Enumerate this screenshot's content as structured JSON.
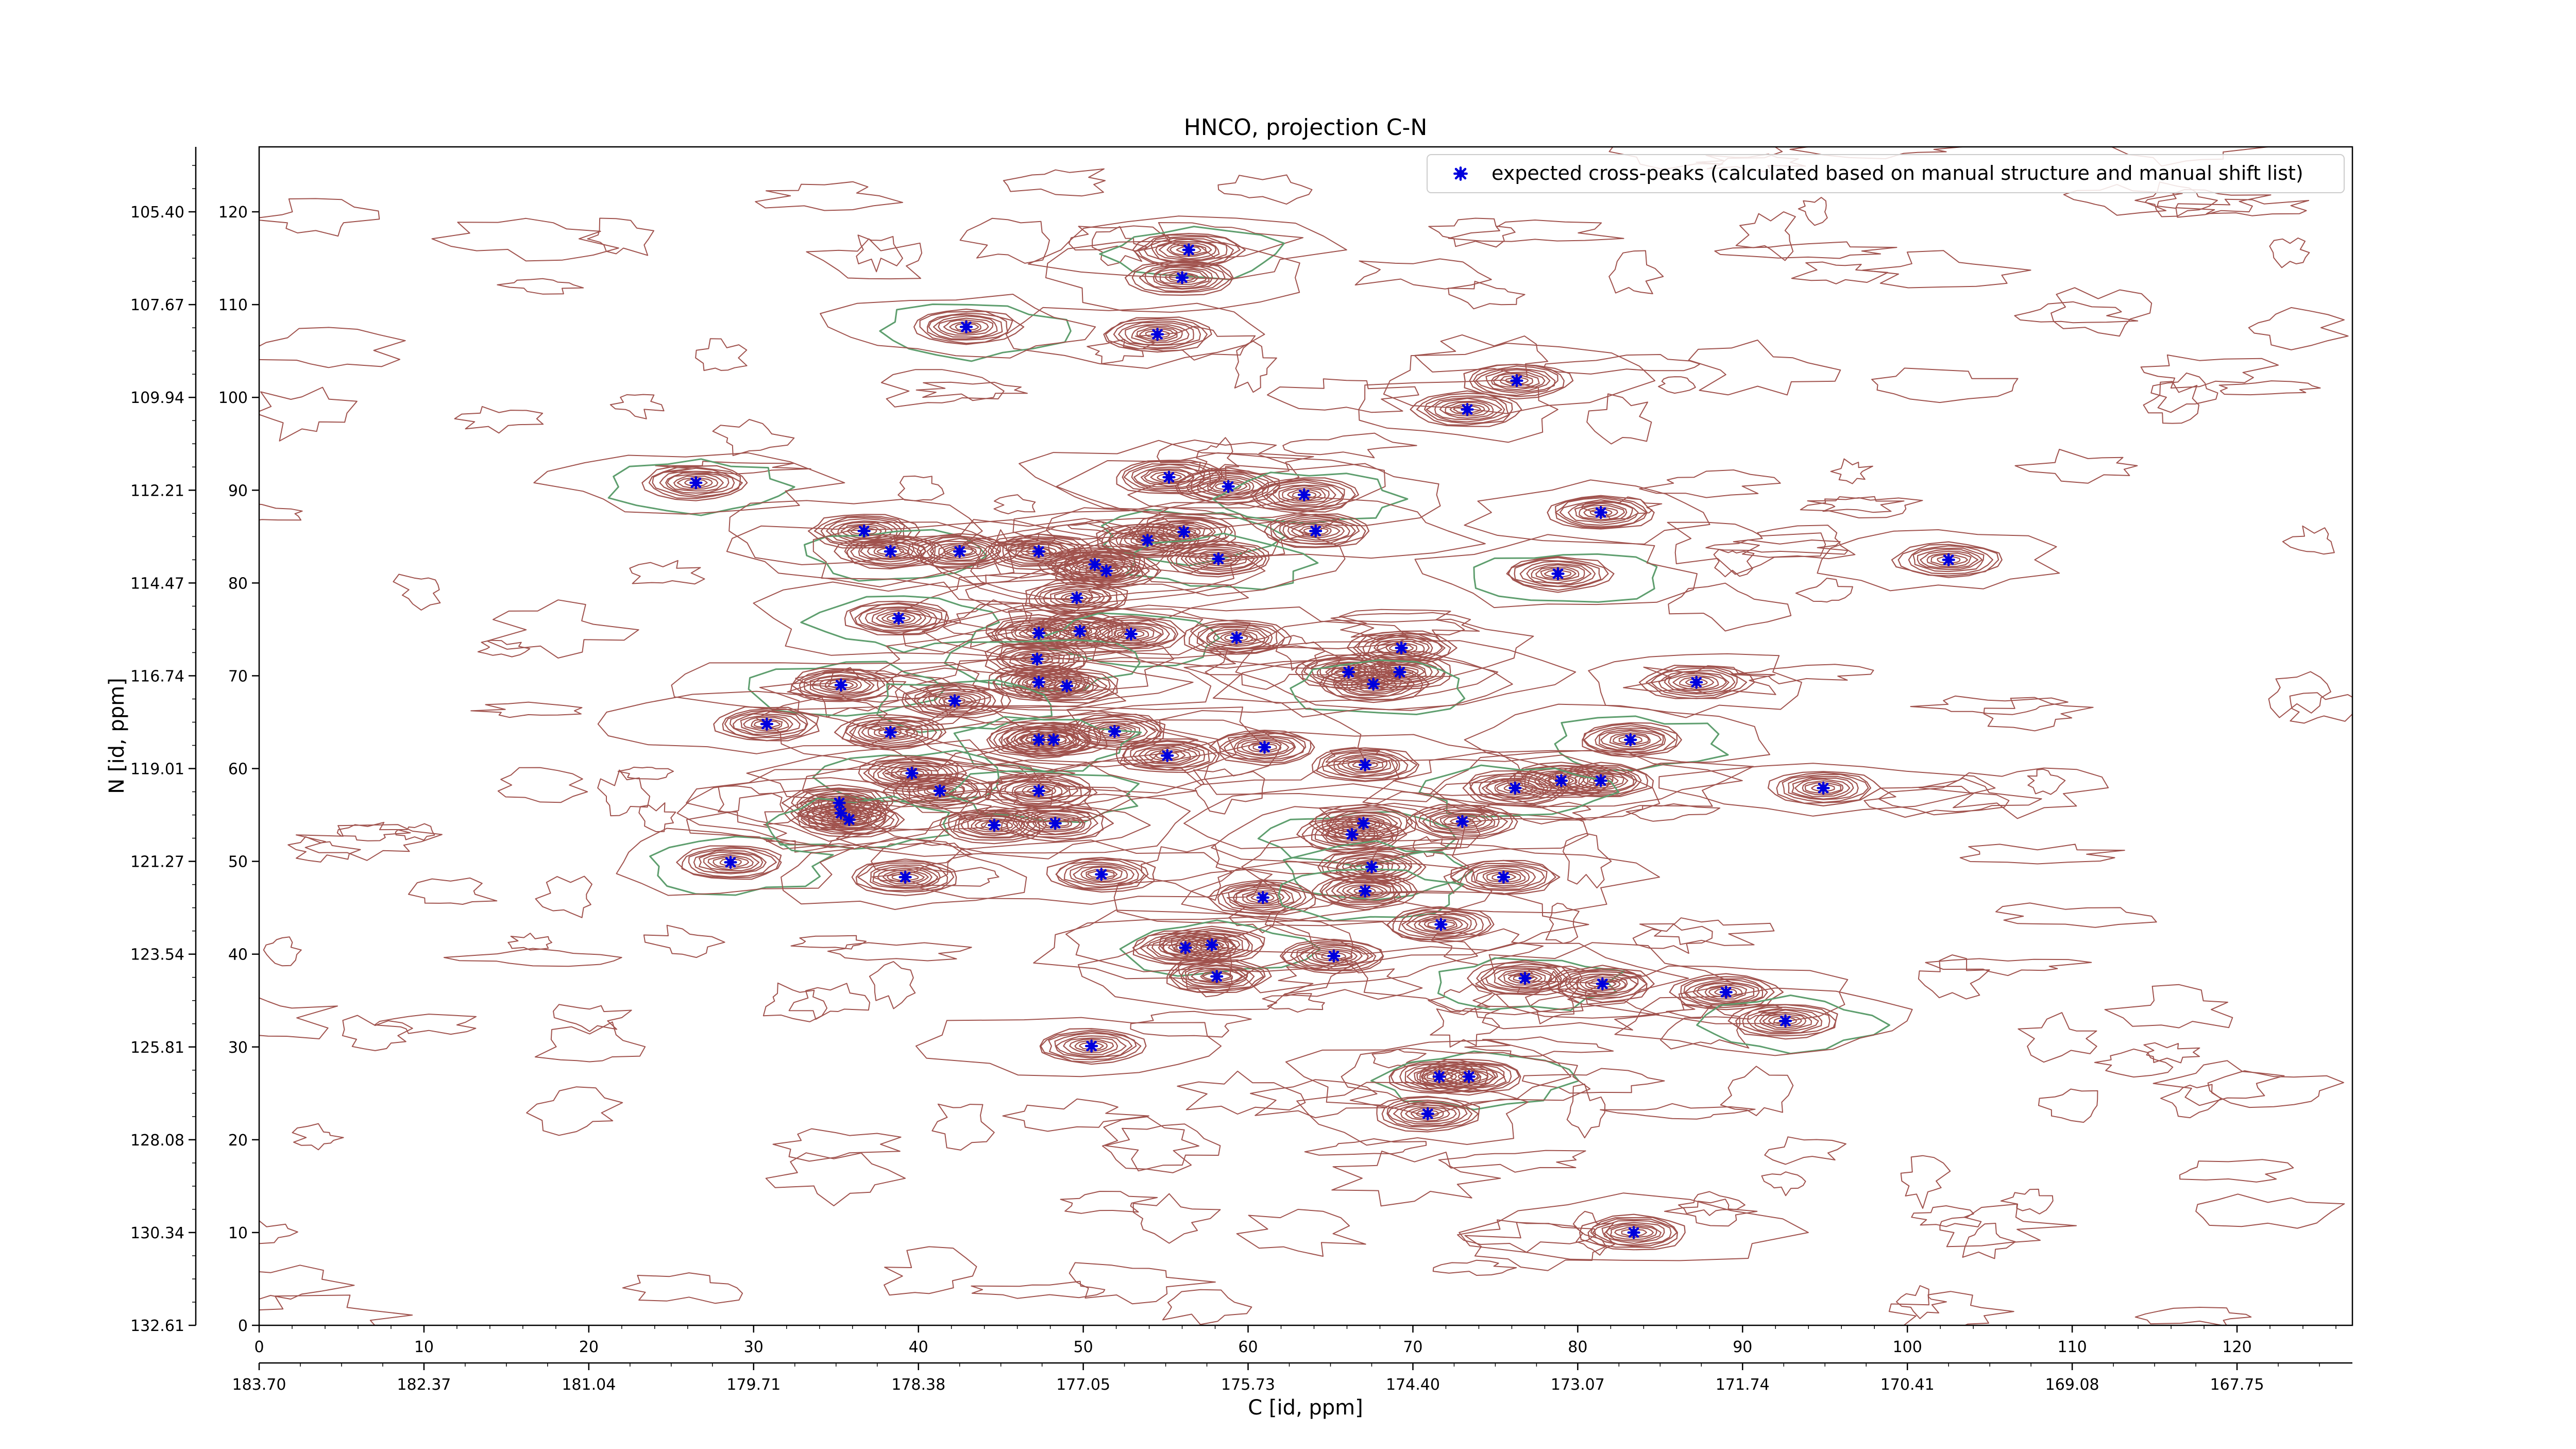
{
  "chart_data": {
    "type": "scatter",
    "title": "HNCO, projection C-N",
    "xlabel": "C [id, ppm]",
    "ylabel": "N [id, ppm]",
    "xlim": [
      0,
      127
    ],
    "ylim": [
      0,
      127
    ],
    "grid": false,
    "legend_position": "top-right",
    "x_ticks": [
      0,
      10,
      20,
      30,
      40,
      50,
      60,
      70,
      80,
      90,
      100,
      110,
      120
    ],
    "y_ticks": [
      0,
      10,
      20,
      30,
      40,
      50,
      60,
      70,
      80,
      90,
      100,
      110,
      120
    ],
    "secondary_x_ticks": [
      "183.70",
      "182.37",
      "181.04",
      "179.71",
      "178.38",
      "177.05",
      "175.73",
      "174.40",
      "173.07",
      "171.74",
      "170.41",
      "169.08",
      "167.75"
    ],
    "secondary_y_ticks": [
      "132.61",
      "130.34",
      "128.08",
      "125.81",
      "123.54",
      "121.27",
      "119.01",
      "116.74",
      "114.47",
      "112.21",
      "109.94",
      "107.67",
      "105.40"
    ],
    "contour_colors": {
      "positive": "#a0524d",
      "negative": "#5e9e6e"
    },
    "series": [
      {
        "name": "expected cross-peaks (calculated based on manual structure and manual shift list)",
        "color": "#0000dd",
        "points": [
          [
            56.4,
            115.9
          ],
          [
            56.0,
            112.9
          ],
          [
            54.5,
            106.8
          ],
          [
            42.9,
            107.6
          ],
          [
            76.3,
            101.8
          ],
          [
            73.3,
            98.7
          ],
          [
            26.5,
            90.8
          ],
          [
            55.2,
            91.4
          ],
          [
            58.8,
            90.4
          ],
          [
            63.4,
            89.5
          ],
          [
            81.4,
            87.6
          ],
          [
            36.7,
            85.6
          ],
          [
            38.3,
            83.4
          ],
          [
            42.5,
            83.4
          ],
          [
            47.3,
            83.4
          ],
          [
            56.1,
            85.5
          ],
          [
            53.9,
            84.6
          ],
          [
            64.1,
            85.6
          ],
          [
            58.2,
            82.6
          ],
          [
            50.7,
            82.0
          ],
          [
            51.4,
            81.3
          ],
          [
            78.8,
            81.0
          ],
          [
            102.5,
            82.5
          ],
          [
            49.6,
            78.4
          ],
          [
            38.8,
            76.2
          ],
          [
            47.3,
            74.6
          ],
          [
            49.8,
            74.8
          ],
          [
            52.9,
            74.5
          ],
          [
            59.3,
            74.1
          ],
          [
            69.3,
            73.0
          ],
          [
            47.2,
            71.8
          ],
          [
            66.1,
            70.4
          ],
          [
            69.2,
            70.4
          ],
          [
            35.3,
            69.0
          ],
          [
            47.3,
            69.3
          ],
          [
            49.0,
            68.9
          ],
          [
            67.6,
            69.1
          ],
          [
            87.2,
            69.3
          ],
          [
            30.8,
            64.8
          ],
          [
            42.2,
            67.3
          ],
          [
            38.3,
            63.9
          ],
          [
            51.9,
            64.0
          ],
          [
            47.3,
            63.1
          ],
          [
            48.2,
            63.1
          ],
          [
            61.0,
            62.3
          ],
          [
            83.2,
            63.1
          ],
          [
            55.1,
            61.4
          ],
          [
            67.1,
            60.4
          ],
          [
            39.6,
            59.5
          ],
          [
            79.0,
            58.7
          ],
          [
            81.4,
            58.7
          ],
          [
            76.2,
            57.9
          ],
          [
            94.9,
            57.9
          ],
          [
            41.3,
            57.6
          ],
          [
            47.3,
            57.6
          ],
          [
            35.2,
            56.3
          ],
          [
            35.3,
            55.2
          ],
          [
            35.8,
            54.5
          ],
          [
            44.6,
            53.9
          ],
          [
            48.3,
            54.1
          ],
          [
            66.3,
            52.9
          ],
          [
            67.0,
            54.1
          ],
          [
            73.0,
            54.3
          ],
          [
            28.6,
            49.9
          ],
          [
            39.2,
            48.3
          ],
          [
            51.1,
            48.6
          ],
          [
            67.5,
            49.4
          ],
          [
            75.5,
            48.3
          ],
          [
            60.9,
            46.1
          ],
          [
            67.1,
            46.8
          ],
          [
            71.7,
            43.2
          ],
          [
            56.2,
            40.7
          ],
          [
            57.8,
            41.0
          ],
          [
            65.2,
            39.8
          ],
          [
            58.1,
            37.6
          ],
          [
            76.8,
            37.4
          ],
          [
            81.5,
            36.8
          ],
          [
            89.0,
            35.9
          ],
          [
            92.6,
            32.8
          ],
          [
            50.5,
            30.1
          ],
          [
            71.6,
            26.8
          ],
          [
            73.4,
            26.8
          ],
          [
            70.9,
            22.8
          ],
          [
            83.4,
            10.0
          ]
        ]
      }
    ]
  }
}
